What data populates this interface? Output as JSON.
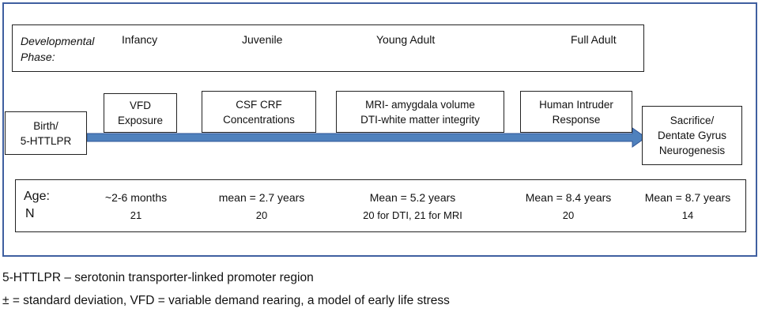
{
  "phases": {
    "label_line1": "Developmental",
    "label_line2": "Phase:",
    "items": [
      "Infancy",
      "Juvenile",
      "Young Adult",
      "Full Adult"
    ]
  },
  "events": [
    {
      "line1": "Birth/",
      "line2": "5-HTTLPR"
    },
    {
      "line1": "VFD",
      "line2": "Exposure"
    },
    {
      "line1": "CSF CRF",
      "line2": "Concentrations"
    },
    {
      "line1": "MRI- amygdala volume",
      "line2": "DTI-white matter integrity"
    },
    {
      "line1": "Human Intruder",
      "line2": "Response"
    },
    {
      "line1": "Sacrifice/",
      "line2": "Dentate Gyrus",
      "line3": "Neurogenesis"
    }
  ],
  "table": {
    "age_label": "Age:",
    "n_label": "N",
    "ages": [
      "~2-6 months",
      "mean = 2.7 years",
      "Mean = 5.2 years",
      "Mean = 8.4 years",
      "Mean = 8.7 years"
    ],
    "ns": [
      "21",
      "20",
      "20 for DTI, 21 for MRI",
      "20",
      "14"
    ]
  },
  "footnotes": [
    "5-HTTLPR – serotonin transporter-linked promoter region",
    "± = standard deviation, VFD = variable demand rearing, a model of early life stress"
  ],
  "colors": {
    "arrow": "#4f81bd",
    "arrow_outline": "#2f5597",
    "frame": "#3f5fa0"
  }
}
